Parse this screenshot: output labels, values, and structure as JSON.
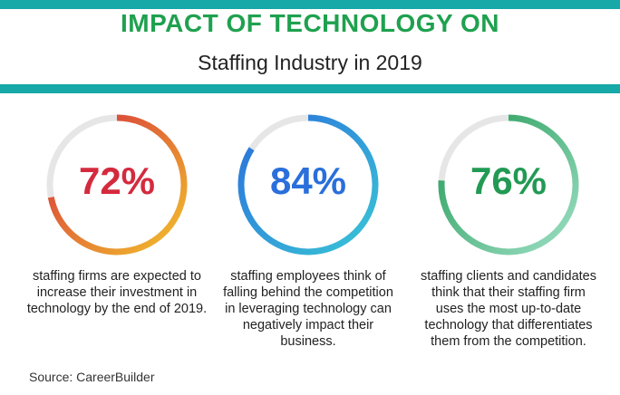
{
  "header": {
    "title": "IMPACT OF TECHNOLOGY ON",
    "subtitle": "Staffing Industry in 2019",
    "accent_color": "#17a8a8",
    "title_color": "#1fa14f"
  },
  "stats": [
    {
      "value": "72%",
      "fraction": 0.72,
      "color": "#d42a3e",
      "ring_colors": [
        "#f3c22b",
        "#d42a3e"
      ],
      "description": "staffing firms are expected to increase their investment in technology by the end of 2019."
    },
    {
      "value": "84%",
      "fraction": 0.84,
      "color": "#2a6fdb",
      "ring_colors": [
        "#39c6d6",
        "#2a6fdb"
      ],
      "description": "staffing employees think of falling behind the competition in leveraging technology can negatively impact their business."
    },
    {
      "value": "76%",
      "fraction": 0.76,
      "color": "#229a54",
      "ring_colors": [
        "#9ee0c6",
        "#229a54"
      ],
      "description": "staffing clients and candidates think that their staffing firm uses the most up-to-date technology that differentiates them from the competition."
    }
  ],
  "source": "Source: CareerBuilder"
}
